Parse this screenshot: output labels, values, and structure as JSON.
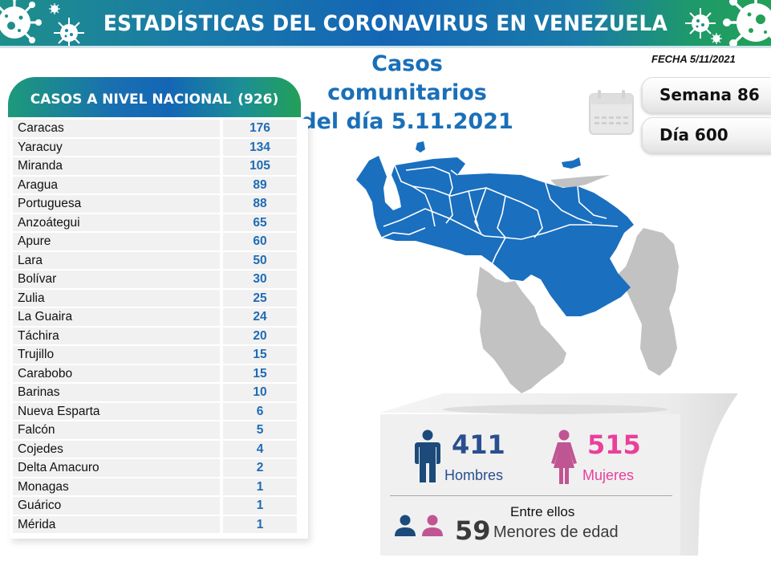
{
  "banner": {
    "title": "ESTADÍSTICAS DEL CORONAVIRUS EN VENEZUELA",
    "icons": [
      "virus-icon",
      "virus-icon",
      "virus-icon",
      "virus-icon",
      "virus-icon",
      "virus-icon"
    ]
  },
  "headline": {
    "line1": "Casos comunitarios",
    "line2": "del día 5.11.2021"
  },
  "fecha": "FECHA 5/11/2021",
  "calendar": {
    "icon": "calendar-icon",
    "week_label": "Semana 86",
    "day_label": "Día 600"
  },
  "table": {
    "title": "CASOS A NIVEL NACIONAL",
    "total": "(926)",
    "rows": [
      {
        "state": "Caracas",
        "cases": "176"
      },
      {
        "state": "Yaracuy",
        "cases": "134"
      },
      {
        "state": "Miranda",
        "cases": "105"
      },
      {
        "state": "Aragua",
        "cases": "89"
      },
      {
        "state": "Portuguesa",
        "cases": "88"
      },
      {
        "state": "Anzoátegui",
        "cases": "65"
      },
      {
        "state": "Apure",
        "cases": "60"
      },
      {
        "state": "Lara",
        "cases": "50"
      },
      {
        "state": "Bolívar",
        "cases": "30"
      },
      {
        "state": "Zulia",
        "cases": "25"
      },
      {
        "state": "La Guaira",
        "cases": "24"
      },
      {
        "state": "Táchira",
        "cases": "20"
      },
      {
        "state": "Trujillo",
        "cases": "15"
      },
      {
        "state": "Carabobo",
        "cases": "15"
      },
      {
        "state": "Barinas",
        "cases": "10"
      },
      {
        "state": "Nueva Esparta",
        "cases": "6"
      },
      {
        "state": "Falcón",
        "cases": "5"
      },
      {
        "state": "Cojedes",
        "cases": "4"
      },
      {
        "state": "Delta Amacuro",
        "cases": "2"
      },
      {
        "state": "Monagas",
        "cases": "1"
      },
      {
        "state": "Guárico",
        "cases": "1"
      },
      {
        "state": "Mérida",
        "cases": "1"
      }
    ]
  },
  "map": {
    "name": "venezuela-map",
    "colors": {
      "affected": "#1a6fbf",
      "unaffected": "#c2c2c2",
      "border": "#ffffff"
    }
  },
  "stats": {
    "men_count": "411",
    "men_label": "Hombres",
    "women_count": "515",
    "women_label": "Mujeres",
    "minors_intro": "Entre ellos",
    "minors_count": "59",
    "minors_label": "Menores de edad",
    "colors": {
      "men": "#1c4a7a",
      "women": "#c05593",
      "women_text": "#ea3f9b",
      "men_text": "#2a4f8f"
    }
  }
}
